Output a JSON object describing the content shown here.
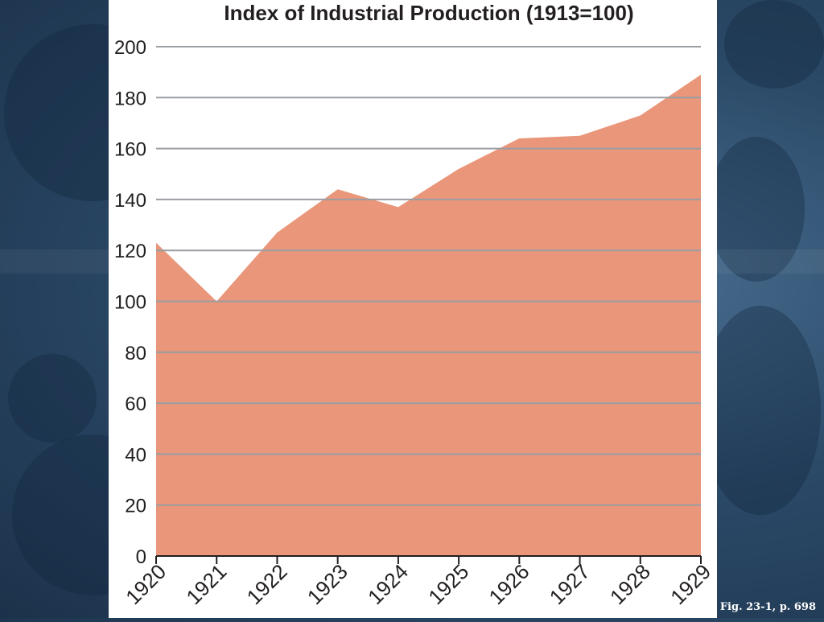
{
  "chart_data": {
    "type": "area",
    "title": "Index of Industrial Production (1913=100)",
    "xlabel": "",
    "ylabel": "",
    "x": [
      "1920",
      "1921",
      "1922",
      "1923",
      "1924",
      "1925",
      "1926",
      "1927",
      "1928",
      "1929"
    ],
    "series": [
      {
        "values": [
          123,
          100,
          127,
          144,
          137,
          152,
          164,
          165,
          173,
          189
        ]
      }
    ],
    "ylim": [
      0,
      200
    ],
    "yticks": [
      0,
      20,
      40,
      60,
      80,
      100,
      120,
      140,
      160,
      180,
      200
    ],
    "grid": true,
    "fill_color": "#e9967a",
    "grid_color": "#9a9da2"
  },
  "caption": "Fig. 23-1, p. 698"
}
